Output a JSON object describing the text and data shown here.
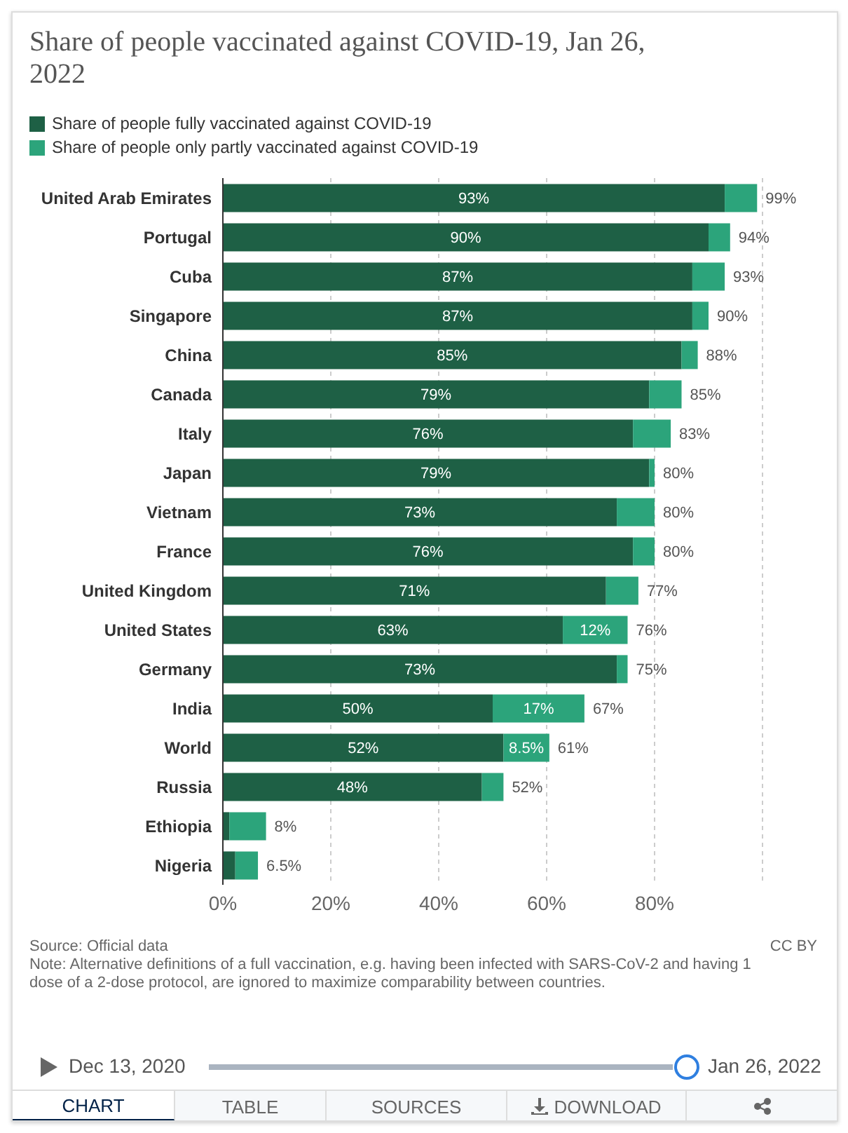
{
  "chart_data": {
    "type": "bar",
    "orientation": "horizontal",
    "stacked": true,
    "title": "Share of people vaccinated against COVID-19, Jan 26, 2022",
    "categories": [
      "United Arab Emirates",
      "Portugal",
      "Cuba",
      "Singapore",
      "China",
      "Canada",
      "Italy",
      "Japan",
      "Vietnam",
      "France",
      "United Kingdom",
      "United States",
      "Germany",
      "India",
      "World",
      "Russia",
      "Ethiopia",
      "Nigeria"
    ],
    "series": [
      {
        "name": "Share of people fully vaccinated against COVID-19",
        "color": "#1e6045",
        "values": [
          93,
          90,
          87,
          87,
          85,
          79,
          76,
          79,
          73,
          76,
          71,
          63,
          73,
          50,
          52,
          48,
          1.2,
          2.3
        ],
        "value_labels": [
          "93%",
          "90%",
          "87%",
          "87%",
          "85%",
          "79%",
          "76%",
          "79%",
          "73%",
          "76%",
          "71%",
          "63%",
          "73%",
          "50%",
          "52%",
          "48%",
          null,
          null
        ]
      },
      {
        "name": "Share of people only partly vaccinated against COVID-19",
        "color": "#2ca47b",
        "values": [
          6,
          4,
          6,
          3,
          3,
          6,
          7,
          1,
          7,
          4,
          6,
          12,
          2,
          17,
          8.5,
          4,
          6.8,
          4.2
        ],
        "value_labels": [
          null,
          null,
          null,
          null,
          null,
          null,
          null,
          null,
          null,
          null,
          null,
          "12%",
          null,
          "17%",
          "8.5%",
          null,
          null,
          null
        ]
      }
    ],
    "totals": [
      "99%",
      "94%",
      "93%",
      "90%",
      "88%",
      "85%",
      "83%",
      "80%",
      "80%",
      "80%",
      "77%",
      "76%",
      "75%",
      "67%",
      "61%",
      "52%",
      "8%",
      "6.5%"
    ],
    "xlim": [
      0,
      100
    ],
    "xticks": [
      {
        "value": 0,
        "label": "0%"
      },
      {
        "value": 20,
        "label": "20%"
      },
      {
        "value": 40,
        "label": "40%"
      },
      {
        "value": 60,
        "label": "60%"
      },
      {
        "value": 80,
        "label": "80%"
      }
    ],
    "grid": "x",
    "legend": "top left",
    "annotations": [
      "Source: Official data",
      "Note: Alternative definitions of a full vaccination, e.g. having been infected with SARS-CoV-2 and having 1 dose of a 2-dose protocol, are ignored to maximize comparability between countries.",
      "CC BY",
      "Dec 13, 2020",
      "Jan 26, 2022",
      "CHART",
      "TABLE",
      "SOURCES",
      "DOWNLOAD"
    ]
  }
}
